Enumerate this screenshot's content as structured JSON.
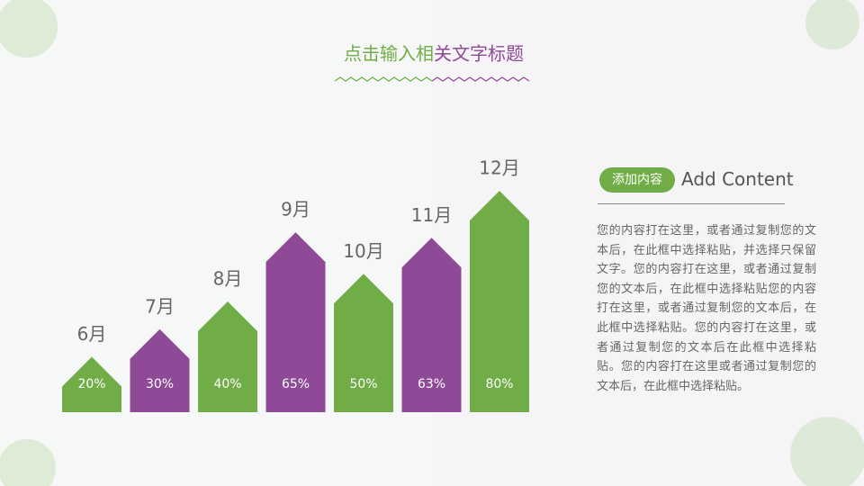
{
  "chart_data": {
    "type": "arrow-bar",
    "title": "点击输入相关文字标题",
    "title_colors": [
      "#70ad47",
      "#8e4a97"
    ],
    "categories": [
      "6月",
      "7月",
      "8月",
      "9月",
      "10月",
      "11月",
      "12月"
    ],
    "values": [
      20,
      30,
      40,
      65,
      50,
      63,
      80
    ],
    "value_labels": [
      "20%",
      "30%",
      "40%",
      "65%",
      "50%",
      "63%",
      "80%"
    ],
    "colors": [
      "#70ad47",
      "#8e4a97",
      "#70ad47",
      "#8e4a97",
      "#70ad47",
      "#8e4a97",
      "#70ad47"
    ]
  },
  "panel": {
    "tag": "添加内容",
    "heading": "Add Content",
    "body": "您的内容打在这里，或者通过复制您的文本后，在此框中选择粘贴，并选择只保留文字。您的内容打在这里，或者通过复制您的文本后，在此框中选择粘贴您的内容打在这里，或者通过复制您的文本后，在此框中选择粘贴。您的内容打在这里，或者通过复制您的文本后在此框中选择粘贴。您的内容打在这里或者通过复制您的文本后，在此框中选择粘贴。"
  }
}
